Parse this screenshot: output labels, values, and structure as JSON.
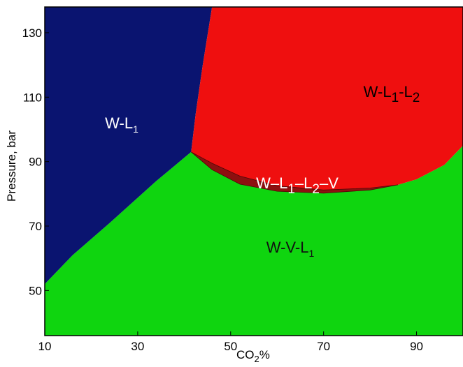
{
  "chart_data": {
    "type": "area",
    "title": "",
    "xlabel": {
      "main": "CO",
      "sub": "2",
      "suffix": "%"
    },
    "ylabel": "Pressure, bar",
    "xlim": [
      10,
      100
    ],
    "ylim": [
      36,
      138
    ],
    "xticks": [
      10,
      30,
      50,
      70,
      90
    ],
    "yticks": [
      50,
      70,
      90,
      110,
      130
    ],
    "grid": false,
    "colors": {
      "W-L1": "#0a1470",
      "W-L1-L2": "#ef0f0f",
      "W-V-L1": "#0fd50f",
      "W-L1-L2-V": "#8d1010"
    },
    "regions": [
      {
        "key": "W-L1",
        "label": {
          "main": "W-L",
          "sub": "1"
        },
        "label_at": [
          24,
          99
        ],
        "boundary": [
          [
            10,
            52
          ],
          [
            10,
            138
          ],
          [
            46,
            138
          ],
          [
            44,
            120
          ],
          [
            42.5,
            105
          ],
          [
            41.5,
            93
          ],
          [
            34,
            84
          ],
          [
            24,
            71
          ],
          [
            16,
            61
          ],
          [
            10,
            52
          ]
        ]
      },
      {
        "key": "W-L1-L2",
        "label": {
          "parts": [
            "W-L",
            "1",
            "-L",
            "2"
          ]
        },
        "label_at": [
          87,
          113
        ],
        "boundary": [
          [
            46,
            138
          ],
          [
            100,
            138
          ],
          [
            100,
            95
          ],
          [
            96,
            89
          ],
          [
            90,
            84.5
          ],
          [
            86,
            82.8
          ],
          [
            80,
            81.2
          ],
          [
            70,
            80.2
          ],
          [
            60,
            80.8
          ],
          [
            52,
            83
          ],
          [
            46,
            87.5
          ],
          [
            41.5,
            93
          ],
          [
            42.5,
            105
          ],
          [
            44,
            120
          ]
        ]
      },
      {
        "key": "W-L1-L2-V",
        "label": {
          "parts": [
            "W–L",
            "1",
            "–L",
            "2",
            "–V"
          ]
        },
        "label_at": [
          64,
          83
        ],
        "boundary": [
          [
            41.5,
            93
          ],
          [
            46,
            87.5
          ],
          [
            52,
            83
          ],
          [
            60,
            80.8
          ],
          [
            70,
            80.2
          ],
          [
            80,
            81.2
          ],
          [
            86,
            82.8
          ],
          [
            80,
            81.8
          ],
          [
            70,
            81.2
          ],
          [
            60,
            82.5
          ],
          [
            52,
            85.5
          ],
          [
            46,
            89.5
          ],
          [
            41.5,
            93
          ]
        ]
      },
      {
        "key": "W-V-L1",
        "label": {
          "main": "W-V-L",
          "sub": "1"
        },
        "label_at": [
          64,
          67
        ],
        "boundary": [
          [
            10,
            36
          ],
          [
            100,
            36
          ],
          [
            100,
            95
          ],
          [
            96,
            89
          ],
          [
            90,
            84.5
          ],
          [
            86,
            82.8
          ],
          [
            80,
            81.2
          ],
          [
            70,
            80.2
          ],
          [
            60,
            80.8
          ],
          [
            52,
            83
          ],
          [
            46,
            87.5
          ],
          [
            41.5,
            93
          ],
          [
            34,
            84
          ],
          [
            24,
            71
          ],
          [
            16,
            61
          ],
          [
            10,
            52
          ]
        ]
      }
    ]
  }
}
